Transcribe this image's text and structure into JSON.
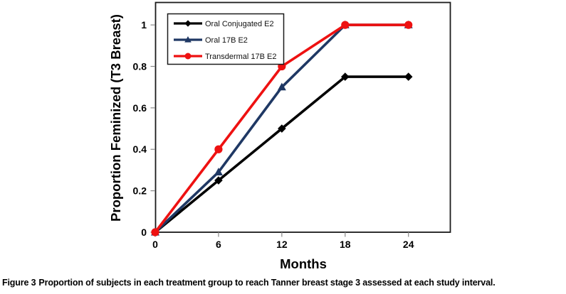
{
  "figure": {
    "caption_label": "Figure 3",
    "caption_text": "Proportion of subjects in each treatment group to reach Tanner breast stage 3 assessed at each study interval."
  },
  "chart_data": {
    "type": "line",
    "title": "",
    "xlabel": "Months",
    "ylabel": "Proportion Feminized (T3 Breast)",
    "x": [
      0,
      6,
      12,
      18,
      24
    ],
    "x_ticks": [
      0,
      6,
      12,
      18,
      24
    ],
    "y_ticks": [
      0,
      0.2,
      0.4,
      0.6,
      0.8,
      1
    ],
    "xlim": [
      0,
      28
    ],
    "ylim": [
      0,
      1.11
    ],
    "grid": false,
    "legend_position": "top-left-inside",
    "colors": {
      "axis_border": "#1a1a1a",
      "tick_mark": "#888888",
      "background": "#ffffff"
    },
    "series": [
      {
        "name": "Oral Conjugated E2",
        "color": "#000000",
        "marker": "diamond",
        "values": [
          0,
          0.25,
          0.5,
          0.75,
          0.75
        ]
      },
      {
        "name": "Oral 17B E2",
        "color": "#1F3864",
        "marker": "triangle",
        "values": [
          0,
          0.29,
          0.7,
          1.0,
          1.0
        ]
      },
      {
        "name": "Transdermal 17B E2",
        "color": "#EE1111",
        "marker": "circle",
        "values": [
          0,
          0.4,
          0.8,
          1.0,
          1.0
        ]
      }
    ]
  }
}
